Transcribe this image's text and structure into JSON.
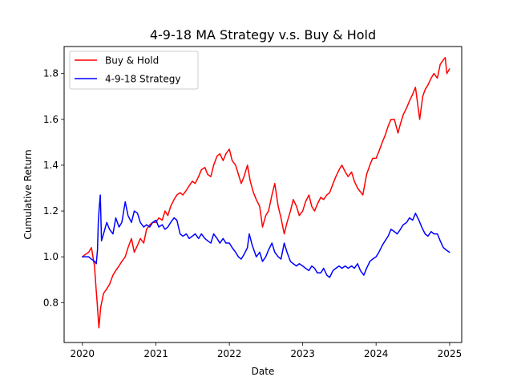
{
  "chart_data": {
    "type": "line",
    "title": "4-9-18 MA Strategy v.s. Buy & Hold",
    "xlabel": "Date",
    "ylabel": "Cumulative Return",
    "xlim": [
      "2019-10-02",
      "2025-03-02"
    ],
    "ylim": [
      0.626,
      1.918
    ],
    "x_ticks": [
      "2020",
      "2021",
      "2022",
      "2023",
      "2024",
      "2025"
    ],
    "y_ticks": [
      "0.8",
      "1.0",
      "1.2",
      "1.4",
      "1.6",
      "1.8"
    ],
    "grid": false,
    "legend_position": "top-left",
    "series": [
      {
        "name": "Buy & Hold",
        "color": "#ff0000",
        "points": [
          [
            "2020-01-01",
            1.0
          ],
          [
            "2020-01-15",
            1.01
          ],
          [
            "2020-02-01",
            1.02
          ],
          [
            "2020-02-15",
            1.04
          ],
          [
            "2020-03-01",
            0.96
          ],
          [
            "2020-03-10",
            0.85
          ],
          [
            "2020-03-16",
            0.78
          ],
          [
            "2020-03-23",
            0.69
          ],
          [
            "2020-04-01",
            0.78
          ],
          [
            "2020-04-15",
            0.84
          ],
          [
            "2020-05-01",
            0.86
          ],
          [
            "2020-05-15",
            0.88
          ],
          [
            "2020-06-01",
            0.92
          ],
          [
            "2020-06-15",
            0.94
          ],
          [
            "2020-07-01",
            0.96
          ],
          [
            "2020-07-15",
            0.98
          ],
          [
            "2020-08-01",
            1.0
          ],
          [
            "2020-08-15",
            1.04
          ],
          [
            "2020-09-01",
            1.08
          ],
          [
            "2020-09-15",
            1.02
          ],
          [
            "2020-10-01",
            1.05
          ],
          [
            "2020-10-15",
            1.08
          ],
          [
            "2020-11-01",
            1.06
          ],
          [
            "2020-11-15",
            1.12
          ],
          [
            "2020-12-01",
            1.14
          ],
          [
            "2020-12-15",
            1.15
          ],
          [
            "2021-01-01",
            1.15
          ],
          [
            "2021-01-15",
            1.17
          ],
          [
            "2021-02-01",
            1.16
          ],
          [
            "2021-02-15",
            1.2
          ],
          [
            "2021-03-01",
            1.18
          ],
          [
            "2021-03-15",
            1.22
          ],
          [
            "2021-04-01",
            1.25
          ],
          [
            "2021-04-15",
            1.27
          ],
          [
            "2021-05-01",
            1.28
          ],
          [
            "2021-05-15",
            1.27
          ],
          [
            "2021-06-01",
            1.29
          ],
          [
            "2021-06-15",
            1.31
          ],
          [
            "2021-07-01",
            1.33
          ],
          [
            "2021-07-15",
            1.32
          ],
          [
            "2021-08-01",
            1.35
          ],
          [
            "2021-08-15",
            1.38
          ],
          [
            "2021-09-01",
            1.39
          ],
          [
            "2021-09-15",
            1.36
          ],
          [
            "2021-10-01",
            1.35
          ],
          [
            "2021-10-15",
            1.4
          ],
          [
            "2021-11-01",
            1.44
          ],
          [
            "2021-11-15",
            1.45
          ],
          [
            "2021-12-01",
            1.42
          ],
          [
            "2021-12-15",
            1.45
          ],
          [
            "2022-01-01",
            1.47
          ],
          [
            "2022-01-15",
            1.42
          ],
          [
            "2022-02-01",
            1.4
          ],
          [
            "2022-02-15",
            1.36
          ],
          [
            "2022-03-01",
            1.32
          ],
          [
            "2022-03-15",
            1.35
          ],
          [
            "2022-04-01",
            1.4
          ],
          [
            "2022-04-15",
            1.33
          ],
          [
            "2022-05-01",
            1.28
          ],
          [
            "2022-05-15",
            1.25
          ],
          [
            "2022-06-01",
            1.22
          ],
          [
            "2022-06-15",
            1.13
          ],
          [
            "2022-07-01",
            1.18
          ],
          [
            "2022-07-15",
            1.2
          ],
          [
            "2022-08-01",
            1.27
          ],
          [
            "2022-08-15",
            1.32
          ],
          [
            "2022-09-01",
            1.22
          ],
          [
            "2022-09-15",
            1.17
          ],
          [
            "2022-10-01",
            1.1
          ],
          [
            "2022-10-15",
            1.15
          ],
          [
            "2022-11-01",
            1.2
          ],
          [
            "2022-11-15",
            1.25
          ],
          [
            "2022-12-01",
            1.22
          ],
          [
            "2022-12-15",
            1.18
          ],
          [
            "2023-01-01",
            1.2
          ],
          [
            "2023-01-15",
            1.24
          ],
          [
            "2023-02-01",
            1.27
          ],
          [
            "2023-02-15",
            1.22
          ],
          [
            "2023-03-01",
            1.2
          ],
          [
            "2023-03-15",
            1.23
          ],
          [
            "2023-04-01",
            1.26
          ],
          [
            "2023-04-15",
            1.25
          ],
          [
            "2023-05-01",
            1.27
          ],
          [
            "2023-05-15",
            1.28
          ],
          [
            "2023-06-01",
            1.32
          ],
          [
            "2023-06-15",
            1.35
          ],
          [
            "2023-07-01",
            1.38
          ],
          [
            "2023-07-15",
            1.4
          ],
          [
            "2023-08-01",
            1.37
          ],
          [
            "2023-08-15",
            1.35
          ],
          [
            "2023-09-01",
            1.37
          ],
          [
            "2023-09-15",
            1.33
          ],
          [
            "2023-10-01",
            1.3
          ],
          [
            "2023-10-27",
            1.27
          ],
          [
            "2023-11-15",
            1.36
          ],
          [
            "2023-12-01",
            1.4
          ],
          [
            "2023-12-15",
            1.43
          ],
          [
            "2024-01-01",
            1.43
          ],
          [
            "2024-01-15",
            1.46
          ],
          [
            "2024-02-01",
            1.5
          ],
          [
            "2024-02-15",
            1.53
          ],
          [
            "2024-03-01",
            1.57
          ],
          [
            "2024-03-15",
            1.6
          ],
          [
            "2024-04-01",
            1.6
          ],
          [
            "2024-04-19",
            1.54
          ],
          [
            "2024-05-01",
            1.58
          ],
          [
            "2024-05-15",
            1.62
          ],
          [
            "2024-06-01",
            1.65
          ],
          [
            "2024-06-15",
            1.68
          ],
          [
            "2024-07-01",
            1.71
          ],
          [
            "2024-07-15",
            1.74
          ],
          [
            "2024-08-05",
            1.6
          ],
          [
            "2024-08-20",
            1.7
          ],
          [
            "2024-09-01",
            1.73
          ],
          [
            "2024-09-15",
            1.75
          ],
          [
            "2024-10-01",
            1.78
          ],
          [
            "2024-10-15",
            1.8
          ],
          [
            "2024-11-01",
            1.78
          ],
          [
            "2024-11-15",
            1.84
          ],
          [
            "2024-12-01",
            1.86
          ],
          [
            "2024-12-10",
            1.87
          ],
          [
            "2024-12-18",
            1.8
          ],
          [
            "2024-12-31",
            1.82
          ]
        ]
      },
      {
        "name": "4-9-18 Strategy",
        "color": "#0000ff",
        "points": [
          [
            "2020-01-01",
            1.0
          ],
          [
            "2020-01-15",
            1.0
          ],
          [
            "2020-02-01",
            1.0
          ],
          [
            "2020-02-15",
            0.99
          ],
          [
            "2020-03-01",
            0.98
          ],
          [
            "2020-03-10",
            0.97
          ],
          [
            "2020-03-16",
            1.03
          ],
          [
            "2020-03-20",
            1.15
          ],
          [
            "2020-03-25",
            1.22
          ],
          [
            "2020-03-30",
            1.27
          ],
          [
            "2020-04-05",
            1.07
          ],
          [
            "2020-04-15",
            1.1
          ],
          [
            "2020-05-01",
            1.15
          ],
          [
            "2020-05-15",
            1.12
          ],
          [
            "2020-06-01",
            1.1
          ],
          [
            "2020-06-15",
            1.17
          ],
          [
            "2020-07-01",
            1.13
          ],
          [
            "2020-07-15",
            1.15
          ],
          [
            "2020-08-01",
            1.24
          ],
          [
            "2020-08-15",
            1.18
          ],
          [
            "2020-09-01",
            1.15
          ],
          [
            "2020-09-15",
            1.2
          ],
          [
            "2020-10-01",
            1.19
          ],
          [
            "2020-10-15",
            1.15
          ],
          [
            "2020-11-01",
            1.13
          ],
          [
            "2020-11-15",
            1.14
          ],
          [
            "2020-12-01",
            1.13
          ],
          [
            "2020-12-15",
            1.15
          ],
          [
            "2021-01-01",
            1.16
          ],
          [
            "2021-01-15",
            1.13
          ],
          [
            "2021-02-01",
            1.14
          ],
          [
            "2021-02-15",
            1.12
          ],
          [
            "2021-03-01",
            1.13
          ],
          [
            "2021-03-15",
            1.15
          ],
          [
            "2021-04-01",
            1.17
          ],
          [
            "2021-04-15",
            1.16
          ],
          [
            "2021-05-01",
            1.1
          ],
          [
            "2021-05-15",
            1.09
          ],
          [
            "2021-06-01",
            1.1
          ],
          [
            "2021-06-15",
            1.08
          ],
          [
            "2021-07-01",
            1.09
          ],
          [
            "2021-07-15",
            1.1
          ],
          [
            "2021-08-01",
            1.08
          ],
          [
            "2021-08-15",
            1.1
          ],
          [
            "2021-09-01",
            1.08
          ],
          [
            "2021-09-15",
            1.07
          ],
          [
            "2021-10-01",
            1.06
          ],
          [
            "2021-10-15",
            1.1
          ],
          [
            "2021-11-01",
            1.08
          ],
          [
            "2021-11-15",
            1.06
          ],
          [
            "2021-12-01",
            1.08
          ],
          [
            "2021-12-15",
            1.06
          ],
          [
            "2022-01-01",
            1.06
          ],
          [
            "2022-01-15",
            1.04
          ],
          [
            "2022-02-01",
            1.02
          ],
          [
            "2022-02-15",
            1.0
          ],
          [
            "2022-03-01",
            0.99
          ],
          [
            "2022-03-15",
            1.01
          ],
          [
            "2022-04-01",
            1.04
          ],
          [
            "2022-04-10",
            1.1
          ],
          [
            "2022-04-25",
            1.05
          ],
          [
            "2022-05-15",
            1.0
          ],
          [
            "2022-06-01",
            1.02
          ],
          [
            "2022-06-15",
            0.98
          ],
          [
            "2022-07-01",
            1.0
          ],
          [
            "2022-07-15",
            1.03
          ],
          [
            "2022-08-01",
            1.06
          ],
          [
            "2022-08-15",
            1.02
          ],
          [
            "2022-09-01",
            1.0
          ],
          [
            "2022-09-15",
            0.99
          ],
          [
            "2022-10-01",
            1.06
          ],
          [
            "2022-10-15",
            1.02
          ],
          [
            "2022-11-01",
            0.98
          ],
          [
            "2022-11-15",
            0.97
          ],
          [
            "2022-12-01",
            0.96
          ],
          [
            "2022-12-15",
            0.97
          ],
          [
            "2023-01-01",
            0.96
          ],
          [
            "2023-01-15",
            0.95
          ],
          [
            "2023-02-01",
            0.94
          ],
          [
            "2023-02-15",
            0.96
          ],
          [
            "2023-03-01",
            0.95
          ],
          [
            "2023-03-15",
            0.93
          ],
          [
            "2023-04-01",
            0.93
          ],
          [
            "2023-04-15",
            0.95
          ],
          [
            "2023-05-01",
            0.92
          ],
          [
            "2023-05-15",
            0.91
          ],
          [
            "2023-06-01",
            0.94
          ],
          [
            "2023-06-15",
            0.95
          ],
          [
            "2023-07-01",
            0.96
          ],
          [
            "2023-07-15",
            0.95
          ],
          [
            "2023-08-01",
            0.96
          ],
          [
            "2023-08-15",
            0.95
          ],
          [
            "2023-09-01",
            0.96
          ],
          [
            "2023-09-15",
            0.95
          ],
          [
            "2023-10-01",
            0.97
          ],
          [
            "2023-10-15",
            0.94
          ],
          [
            "2023-11-01",
            0.92
          ],
          [
            "2023-11-15",
            0.95
          ],
          [
            "2023-12-01",
            0.98
          ],
          [
            "2023-12-15",
            0.99
          ],
          [
            "2024-01-01",
            1.0
          ],
          [
            "2024-01-15",
            1.02
          ],
          [
            "2024-02-01",
            1.05
          ],
          [
            "2024-02-15",
            1.07
          ],
          [
            "2024-03-01",
            1.09
          ],
          [
            "2024-03-15",
            1.12
          ],
          [
            "2024-04-01",
            1.11
          ],
          [
            "2024-04-15",
            1.1
          ],
          [
            "2024-05-01",
            1.12
          ],
          [
            "2024-05-15",
            1.14
          ],
          [
            "2024-06-01",
            1.15
          ],
          [
            "2024-06-15",
            1.17
          ],
          [
            "2024-07-01",
            1.16
          ],
          [
            "2024-07-15",
            1.19
          ],
          [
            "2024-08-01",
            1.16
          ],
          [
            "2024-08-15",
            1.13
          ],
          [
            "2024-09-01",
            1.1
          ],
          [
            "2024-09-15",
            1.09
          ],
          [
            "2024-10-01",
            1.11
          ],
          [
            "2024-10-15",
            1.1
          ],
          [
            "2024-11-01",
            1.1
          ],
          [
            "2024-11-15",
            1.07
          ],
          [
            "2024-12-01",
            1.04
          ],
          [
            "2024-12-15",
            1.03
          ],
          [
            "2024-12-31",
            1.02
          ]
        ]
      }
    ]
  }
}
